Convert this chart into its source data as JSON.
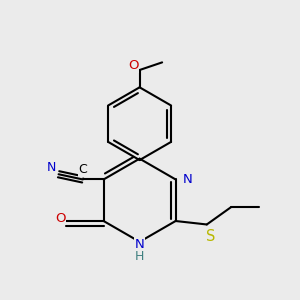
{
  "bg_color": "#ebebeb",
  "atom_colors": {
    "C": "#000000",
    "N": "#0000cc",
    "O": "#cc0000",
    "S": "#b8b800",
    "H": "#408080"
  },
  "bond_color": "#000000",
  "bond_width": 1.5,
  "fig_size": [
    3.0,
    3.0
  ],
  "dpi": 100
}
